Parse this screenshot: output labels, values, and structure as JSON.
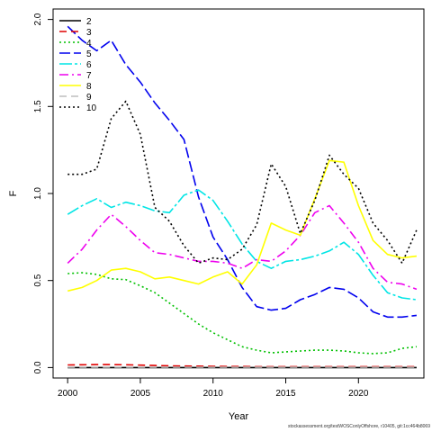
{
  "chart_data": {
    "type": "line",
    "title": "",
    "xlabel": "Year",
    "ylabel": "F",
    "xlim": [
      1999,
      2024.5
    ],
    "ylim": [
      -0.06,
      2.06
    ],
    "x_ticks": [
      "2000",
      "2005",
      "2010",
      "2015",
      "2020"
    ],
    "y_ticks": [
      "0.0",
      "0.5",
      "1.0",
      "1.5",
      "2.0"
    ],
    "legend_position": "top-left",
    "x": [
      2000,
      2001,
      2002,
      2003,
      2004,
      2005,
      2006,
      2007,
      2008,
      2009,
      2010,
      2011,
      2012,
      2013,
      2014,
      2015,
      2016,
      2017,
      2018,
      2019,
      2020,
      2021,
      2022,
      2023,
      2024
    ],
    "series": [
      {
        "name": "2",
        "color": "#000000",
        "dash": "solid",
        "values": [
          0.0,
          0.0,
          0.0,
          0.0,
          0.0,
          0.0,
          0.0,
          0.0,
          0.0,
          0.0,
          0.0,
          0.0,
          0.0,
          0.0,
          0.0,
          0.0,
          0.0,
          0.0,
          0.0,
          0.0,
          0.0,
          0.0,
          0.0,
          0.0,
          0.0
        ]
      },
      {
        "name": "3",
        "color": "#df0000",
        "dash": "8,5",
        "values": [
          0.015,
          0.016,
          0.017,
          0.017,
          0.016,
          0.014,
          0.012,
          0.01,
          0.009,
          0.008,
          0.007,
          0.006,
          0.006,
          0.005,
          0.005,
          0.005,
          0.005,
          0.005,
          0.005,
          0.005,
          0.005,
          0.005,
          0.005,
          0.005,
          0.005
        ]
      },
      {
        "name": "4",
        "color": "#00c000",
        "dash": "2,3",
        "values": [
          0.54,
          0.545,
          0.535,
          0.51,
          0.505,
          0.47,
          0.43,
          0.37,
          0.31,
          0.25,
          0.2,
          0.16,
          0.12,
          0.1,
          0.085,
          0.09,
          0.095,
          0.1,
          0.1,
          0.095,
          0.085,
          0.08,
          0.085,
          0.11,
          0.12
        ]
      },
      {
        "name": "5",
        "color": "#0000ee",
        "dash": "12,4",
        "values": [
          1.96,
          1.88,
          1.82,
          1.88,
          1.74,
          1.64,
          1.52,
          1.42,
          1.31,
          0.98,
          0.75,
          0.62,
          0.46,
          0.35,
          0.33,
          0.34,
          0.39,
          0.42,
          0.46,
          0.45,
          0.4,
          0.32,
          0.29,
          0.29,
          0.3
        ]
      },
      {
        "name": "6",
        "color": "#00e5e5",
        "dash": "14,3,3,3",
        "values": [
          0.88,
          0.93,
          0.97,
          0.92,
          0.95,
          0.93,
          0.9,
          0.89,
          0.99,
          1.02,
          0.96,
          0.84,
          0.71,
          0.61,
          0.57,
          0.61,
          0.62,
          0.64,
          0.67,
          0.72,
          0.65,
          0.53,
          0.43,
          0.4,
          0.39
        ]
      },
      {
        "name": "7",
        "color": "#ee00ee",
        "dash": "10,4,2,4",
        "values": [
          0.6,
          0.68,
          0.79,
          0.88,
          0.81,
          0.73,
          0.66,
          0.65,
          0.63,
          0.61,
          0.61,
          0.6,
          0.57,
          0.62,
          0.61,
          0.67,
          0.76,
          0.89,
          0.93,
          0.83,
          0.72,
          0.57,
          0.49,
          0.48,
          0.45
        ]
      },
      {
        "name": "8",
        "color": "#ffff00",
        "dash": "solid",
        "values": [
          0.44,
          0.46,
          0.5,
          0.56,
          0.57,
          0.55,
          0.51,
          0.52,
          0.5,
          0.48,
          0.52,
          0.55,
          0.48,
          0.59,
          0.83,
          0.79,
          0.76,
          0.97,
          1.19,
          1.18,
          0.93,
          0.73,
          0.65,
          0.63,
          0.64
        ]
      },
      {
        "name": "9",
        "color": "#bebebe",
        "dash": "8,5",
        "values": [
          0.002,
          0.002,
          0.002,
          0.002,
          0.002,
          0.002,
          0.002,
          0.002,
          0.002,
          0.002,
          0.002,
          0.002,
          0.002,
          0.002,
          0.002,
          0.002,
          0.002,
          0.002,
          0.002,
          0.002,
          0.002,
          0.002,
          0.002,
          0.002,
          0.002
        ]
      },
      {
        "name": "10",
        "color": "#000000",
        "dash": "2,3",
        "values": [
          1.11,
          1.11,
          1.14,
          1.43,
          1.53,
          1.34,
          0.92,
          0.84,
          0.7,
          0.6,
          0.63,
          0.62,
          0.68,
          0.82,
          1.17,
          1.04,
          0.77,
          0.96,
          1.22,
          1.11,
          1.03,
          0.83,
          0.73,
          0.6,
          0.79
        ]
      }
    ]
  },
  "footer": "stockassessment.org/testWOSConlyOffshore, r10405, git:1cc464b8069"
}
